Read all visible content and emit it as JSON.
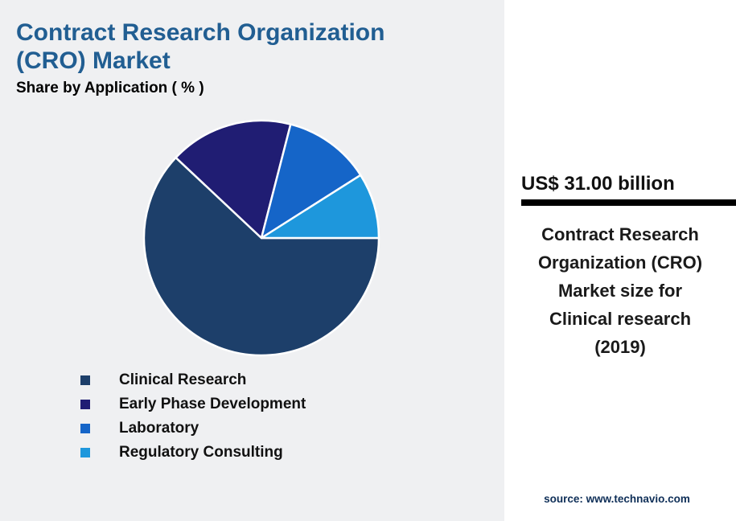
{
  "header": {
    "title": "Contract Research Organization (CRO) Market",
    "subtitle": "Share by Application ( % )",
    "title_color": "#215e92"
  },
  "chart_data": {
    "type": "pie",
    "title": "Contract Research Organization (CRO) Market",
    "subtitle": "Share by Application ( % )",
    "units": "%",
    "start_angle_deg": 0,
    "angle_reference": "3-oclock",
    "direction": "clockwise",
    "legend_position": "bottom-left",
    "segments": [
      {
        "label": "Clinical Research",
        "value": 62,
        "color": "#1d3f6a"
      },
      {
        "label": "Early Phase Development",
        "value": 17,
        "color": "#201d73"
      },
      {
        "label": "Laboratory",
        "value": 12,
        "color": "#1565c8"
      },
      {
        "label": "Regulatory Consulting",
        "value": 9,
        "color": "#1e97dc"
      }
    ]
  },
  "callout": {
    "value": "US$ 31.00 billion",
    "description": "Contract Research Organization (CRO) Market size for Clinical research (2019)"
  },
  "footer": {
    "source_label": "source:",
    "source_url": " www.technavio.com"
  },
  "colors": {
    "background": "#eff0f2",
    "panel": "#ffffff",
    "rule": "#000000",
    "slice_border": "#ffffff"
  }
}
